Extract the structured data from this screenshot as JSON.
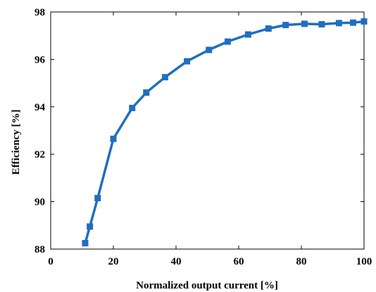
{
  "chart_data": {
    "type": "line",
    "title": "",
    "xlabel": "Normalized output current [%]",
    "ylabel": "Efficiency [%]",
    "xlim": [
      0,
      100
    ],
    "ylim": [
      88,
      98
    ],
    "xticks": [
      0,
      20,
      40,
      60,
      80,
      100
    ],
    "yticks": [
      88,
      90,
      92,
      94,
      96,
      98
    ],
    "xtick_labels": [
      "0",
      "20",
      "40",
      "60",
      "80",
      "100"
    ],
    "ytick_labels": [
      "88",
      "90",
      "92",
      "94",
      "96",
      "98"
    ],
    "grid": false,
    "legend": "none",
    "marker": "square",
    "color": "#1f6fbf",
    "series": [
      {
        "x": [
          11.0,
          12.5,
          15.0,
          20.0,
          26.0,
          30.5,
          36.5,
          43.5,
          50.5,
          56.5,
          63.0,
          69.5,
          75.0,
          81.0,
          86.5,
          92.0,
          96.5,
          100.0
        ],
        "y": [
          88.25,
          88.95,
          90.15,
          92.65,
          93.95,
          94.6,
          95.25,
          95.92,
          96.4,
          96.75,
          97.05,
          97.3,
          97.45,
          97.5,
          97.48,
          97.53,
          97.55,
          97.6
        ]
      }
    ]
  }
}
